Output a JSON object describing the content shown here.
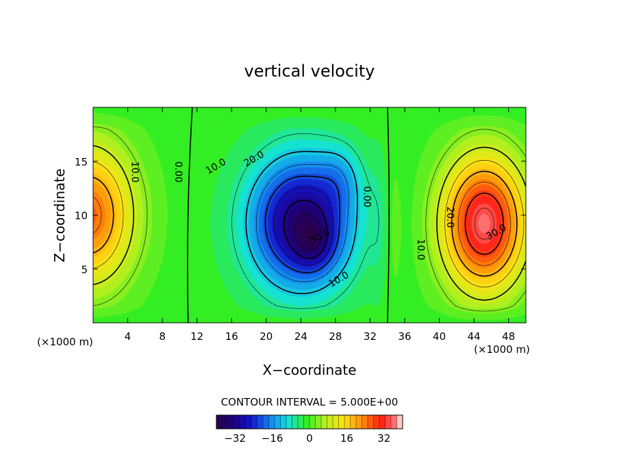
{
  "colors": {
    "background": "#ffffff",
    "field_zero": "#33ee22",
    "positive_max": "#ff1a1a",
    "negative_max": "#1a0a9a"
  },
  "chart_data": {
    "type": "heatmap",
    "subtype": "filled contour plot",
    "title": "vertical velocity",
    "xlabel": "X−coordinate",
    "ylabel": "Z−coordinate",
    "x_unit_left": "(×1000 m)",
    "x_unit_right": "(×1000 m)",
    "xlim": [
      0,
      50
    ],
    "ylim": [
      0,
      20
    ],
    "xticks": [
      4,
      8,
      12,
      16,
      20,
      24,
      28,
      32,
      36,
      40,
      44,
      48
    ],
    "yticks": [
      5,
      10,
      15
    ],
    "xtick_labels": [
      "4",
      "8",
      "12",
      "16",
      "20",
      "24",
      "28",
      "32",
      "36",
      "40",
      "44",
      "48"
    ],
    "ytick_labels": [
      "5",
      "10",
      "15"
    ],
    "contour_interval_text": "CONTOUR INTERVAL = 5.000E+00",
    "contour_interval": 5.0,
    "colorbar": {
      "range": [
        -40,
        40
      ],
      "ticks": [
        -32,
        -16,
        0,
        16,
        32
      ],
      "tick_labels": [
        "−32",
        "−16",
        "0",
        "16",
        "32"
      ]
    },
    "contour_labels": [
      {
        "text": "10.0",
        "x": 4.8,
        "z": 14.0
      },
      {
        "text": "0.00",
        "x": 9.8,
        "z": 14.0
      },
      {
        "text": "10.0",
        "x": 14.2,
        "z": 14.5
      },
      {
        "text": "20.0",
        "x": 18.6,
        "z": 15.2
      },
      {
        "text": "30.0",
        "x": 26.2,
        "z": 8.0
      },
      {
        "text": "10.0",
        "x": 28.4,
        "z": 4.0
      },
      {
        "text": "0.00",
        "x": 31.6,
        "z": 11.7
      },
      {
        "text": "10.0",
        "x": 37.8,
        "z": 6.8
      },
      {
        "text": "20.0",
        "x": 41.2,
        "z": 9.8
      },
      {
        "text": "30.0",
        "x": 46.6,
        "z": 8.4
      }
    ],
    "field_features": [
      {
        "name": "updraft-left-edge",
        "x": 0.5,
        "z": 10.0,
        "peak": 26
      },
      {
        "name": "downdraft-center",
        "x": 25.0,
        "z": 9.0,
        "peak": -34
      },
      {
        "name": "updraft-right",
        "x": 45.0,
        "z": 9.5,
        "peak": 36
      }
    ]
  }
}
